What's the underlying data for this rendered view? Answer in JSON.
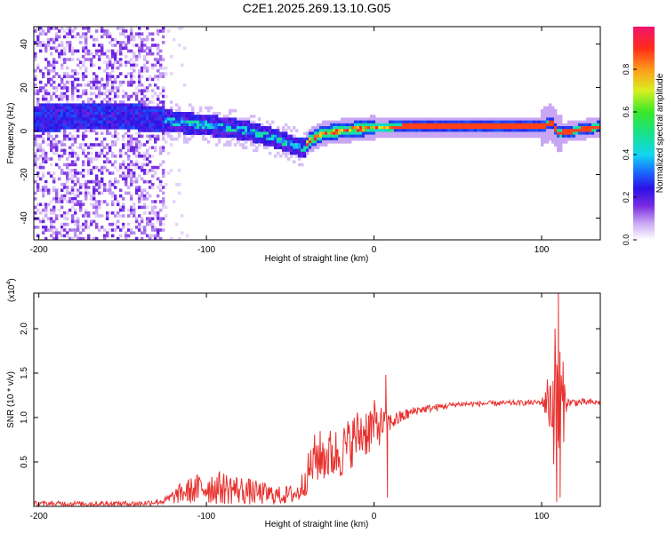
{
  "title": "C2E1.2025.269.13.10.G05",
  "colors": {
    "snr_line": "#e8312e",
    "axis": "#000000",
    "background": "#ffffff"
  },
  "chart_data": [
    {
      "type": "heatmap",
      "xlabel": "Height of straight line (km)",
      "ylabel": "Frequency (Hz)",
      "xlim": [
        -203,
        135
      ],
      "ylim": [
        -50,
        48
      ],
      "xticks": [
        {
          "v": -200,
          "label": "-200"
        },
        {
          "v": -100,
          "label": "-100"
        },
        {
          "v": 0,
          "label": "0"
        },
        {
          "v": 100,
          "label": "100"
        }
      ],
      "yticks": [
        {
          "v": -40,
          "label": "-40"
        },
        {
          "v": -20,
          "label": "-20"
        },
        {
          "v": 0,
          "label": "0"
        },
        {
          "v": 20,
          "label": "20"
        },
        {
          "v": 40,
          "label": "40"
        }
      ],
      "colorbar": {
        "label": "Normalized spectral amplitude",
        "range": [
          0,
          1
        ],
        "ticks": [
          {
            "v": 0.0,
            "label": "0.0"
          },
          {
            "v": 0.2,
            "label": "0.2"
          },
          {
            "v": 0.4,
            "label": "0.4"
          },
          {
            "v": 0.6,
            "label": "0.6"
          },
          {
            "v": 0.8,
            "label": "0.8"
          }
        ]
      },
      "ridge_center_hz": [
        {
          "x": -203,
          "f": 6
        },
        {
          "x": -150,
          "f": 7
        },
        {
          "x": -125,
          "f": 5
        },
        {
          "x": -105,
          "f": 3
        },
        {
          "x": -90,
          "f": 2
        },
        {
          "x": -75,
          "f": 0
        },
        {
          "x": -60,
          "f": -3
        },
        {
          "x": -50,
          "f": -6
        },
        {
          "x": -42,
          "f": -8
        },
        {
          "x": -38,
          "f": -4
        },
        {
          "x": -30,
          "f": -1
        },
        {
          "x": -20,
          "f": 0
        },
        {
          "x": -10,
          "f": 1
        },
        {
          "x": 0,
          "f": 1.5
        },
        {
          "x": 20,
          "f": 2
        },
        {
          "x": 60,
          "f": 2
        },
        {
          "x": 100,
          "f": 2
        },
        {
          "x": 106,
          "f": 4
        },
        {
          "x": 110,
          "f": -1
        },
        {
          "x": 135,
          "f": 2
        }
      ]
    },
    {
      "type": "line",
      "xlabel": "Height of straight line (km)",
      "ylabel": "SNR (10 * v/v)",
      "y_scale_note": "(x10",
      "y_scale_exp": "4",
      "xlim": [
        -203,
        135
      ],
      "ylim": [
        0,
        2.4
      ],
      "xticks": [
        {
          "v": -200,
          "label": "-200"
        },
        {
          "v": -100,
          "label": "-100"
        },
        {
          "v": 0,
          "label": "0"
        },
        {
          "v": 100,
          "label": "100"
        }
      ],
      "yticks": [
        {
          "v": 0.5,
          "label": "0.5"
        },
        {
          "v": 1.0,
          "label": "1.0"
        },
        {
          "v": 1.5,
          "label": "1.5"
        },
        {
          "v": 2.0,
          "label": "2.0"
        }
      ],
      "series": [
        {
          "name": "SNR",
          "envelope": [
            {
              "x": -203,
              "base": 0.03,
              "amp": 0.03
            },
            {
              "x": -140,
              "base": 0.03,
              "amp": 0.03
            },
            {
              "x": -125,
              "base": 0.06,
              "amp": 0.04
            },
            {
              "x": -115,
              "base": 0.15,
              "amp": 0.12
            },
            {
              "x": -100,
              "base": 0.22,
              "amp": 0.2
            },
            {
              "x": -85,
              "base": 0.2,
              "amp": 0.18
            },
            {
              "x": -70,
              "base": 0.15,
              "amp": 0.14
            },
            {
              "x": -55,
              "base": 0.12,
              "amp": 0.1
            },
            {
              "x": -45,
              "base": 0.15,
              "amp": 0.12
            },
            {
              "x": -35,
              "base": 0.55,
              "amp": 0.3
            },
            {
              "x": -20,
              "base": 0.6,
              "amp": 0.3
            },
            {
              "x": -10,
              "base": 0.8,
              "amp": 0.3
            },
            {
              "x": 0,
              "base": 0.9,
              "amp": 0.3
            },
            {
              "x": 10,
              "base": 0.95,
              "amp": 0.1
            },
            {
              "x": 25,
              "base": 1.08,
              "amp": 0.05
            },
            {
              "x": 50,
              "base": 1.15,
              "amp": 0.03
            },
            {
              "x": 100,
              "base": 1.17,
              "amp": 0.03
            },
            {
              "x": 105,
              "base": 1.2,
              "amp": 0.4
            },
            {
              "x": 110,
              "base": 1.1,
              "amp": 1.1
            },
            {
              "x": 115,
              "base": 1.17,
              "amp": 0.05
            },
            {
              "x": 135,
              "base": 1.17,
              "amp": 0.03
            }
          ],
          "spikes": [
            {
              "x": 7,
              "value": 1.48
            },
            {
              "x": 8,
              "value": 0.1
            },
            {
              "x": 108,
              "value": 2.0
            },
            {
              "x": 109,
              "value": 0.05
            },
            {
              "x": 110,
              "value": 2.4
            },
            {
              "x": 111,
              "value": 0.1
            }
          ]
        }
      ]
    }
  ]
}
